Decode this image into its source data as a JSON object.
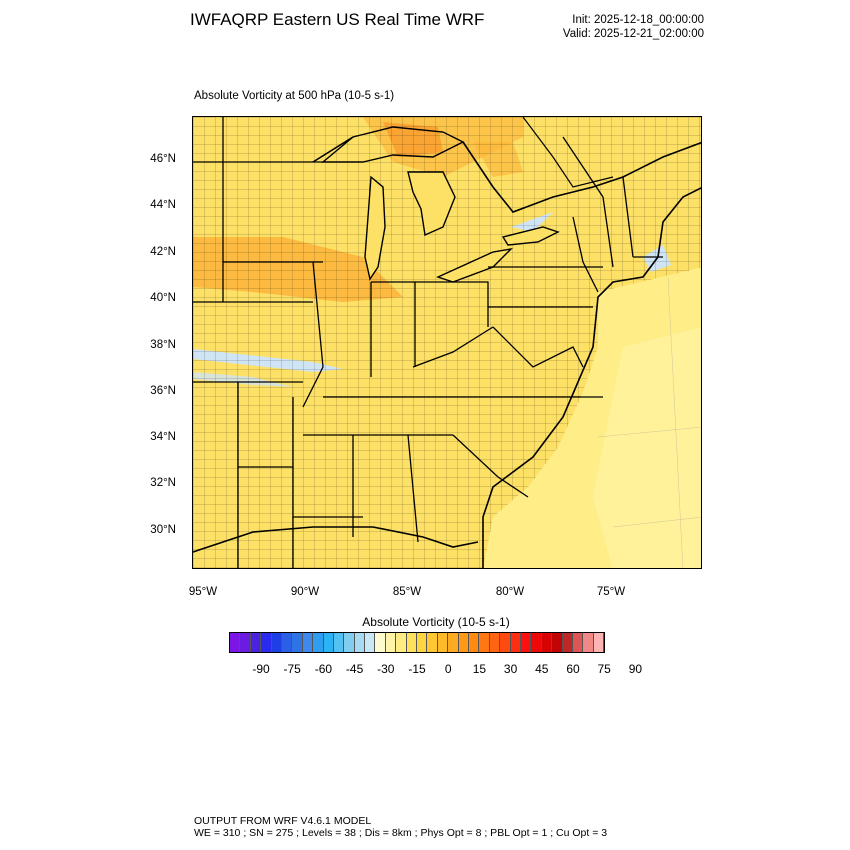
{
  "header": {
    "title": "IWFAQRP Eastern US Real Time WRF",
    "init": "Init: 2025-12-18_00:00:00",
    "valid": "Valid: 2025-12-21_02:00:00"
  },
  "map": {
    "field_title": "Absolute Vorticity at 500 hPa   (10-5 s-1)",
    "lat_labels": [
      "46°N",
      "44°N",
      "42°N",
      "40°N",
      "38°N",
      "36°N",
      "34°N",
      "32°N",
      "30°N"
    ],
    "lon_labels": [
      "95°W",
      "90°W",
      "85°W",
      "80°W",
      "75°W"
    ],
    "colors": {
      "base": "#fde066",
      "warm": "#fbb237",
      "hot": "#f8962a",
      "pale": "#fff08a",
      "cool": "#cfe5f5"
    }
  },
  "colorbar": {
    "title": "Absolute Vorticity  (10-5 s-1)",
    "labels": [
      "-90",
      "-75",
      "-60",
      "-45",
      "-30",
      "-15",
      "0",
      "15",
      "30",
      "45",
      "60",
      "75",
      "90"
    ],
    "colors": [
      "#7b16e6",
      "#6a1de0",
      "#4a22e0",
      "#2b2bf0",
      "#1f3fe6",
      "#2a5fe6",
      "#2e74e6",
      "#3f88ee",
      "#2f9ef0",
      "#2bb3f4",
      "#55c0f2",
      "#80cdf0",
      "#a6dbf2",
      "#c8e8f6",
      "#fffbd0",
      "#fff4a8",
      "#ffec82",
      "#ffe15c",
      "#ffd640",
      "#ffc832",
      "#ffba2a",
      "#ffab22",
      "#ff9a18",
      "#ff8a12",
      "#ff7712",
      "#ff6412",
      "#ff4a12",
      "#ff2e12",
      "#ff1010",
      "#ee0808",
      "#d80404",
      "#c20404",
      "#c02828",
      "#dd5555",
      "#f08888",
      "#ffb4b4"
    ]
  },
  "footer": {
    "line1": "OUTPUT FROM WRF V4.6.1 MODEL",
    "line2": "WE = 310 ; SN = 275 ; Levels = 38 ; Dis = 8km ; Phys Opt = 8 ; PBL Opt = 1 ; Cu Opt = 3"
  }
}
